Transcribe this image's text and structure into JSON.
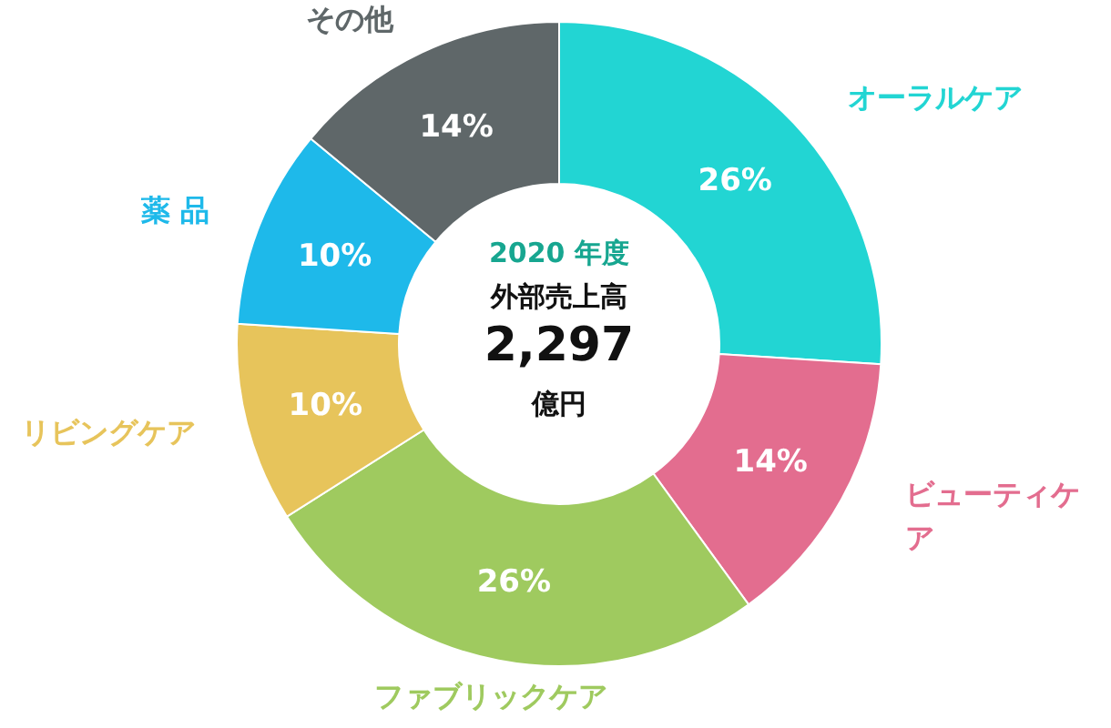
{
  "chart_data": {
    "type": "donut",
    "title": "2020 年度",
    "subtitle": "外部売上高",
    "annotations": [
      "2,297",
      "億円"
    ],
    "categories": [
      "オーラルケア",
      "ビューティケア",
      "ファブリックケア",
      "リビングケア",
      "薬 品",
      "その他"
    ],
    "values": [
      26,
      14,
      26,
      10,
      10,
      14
    ],
    "value_labels": [
      "26%",
      "14%",
      "26%",
      "10%",
      "10%",
      "14%"
    ],
    "colors": [
      "#22d5d3",
      "#e36d8f",
      "#9fca5f",
      "#e7c45b",
      "#1eb9ea",
      "#5f6769"
    ]
  }
}
